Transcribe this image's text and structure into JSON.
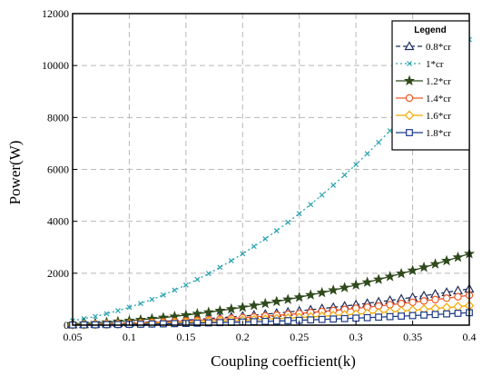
{
  "chart_data": {
    "type": "line",
    "title": "",
    "xlabel": "Coupling coefficient(k)",
    "ylabel": "Power(W)",
    "xlim": [
      0.05,
      0.4
    ],
    "ylim": [
      0,
      12000
    ],
    "xticks": [
      0.05,
      0.1,
      0.15,
      0.2,
      0.25,
      0.3,
      0.35,
      0.4
    ],
    "xtick_labels": [
      "0.05",
      "0.1",
      "0.15",
      "0.2",
      "0.25",
      "0.3",
      "0.35",
      "0.4"
    ],
    "yticks": [
      0,
      2000,
      4000,
      6000,
      8000,
      10000,
      12000
    ],
    "ytick_labels": [
      "0",
      "2000",
      "4000",
      "6000",
      "8000",
      "10000",
      "12000"
    ],
    "grid": true,
    "legend": {
      "title": "Legend",
      "position": "top-right"
    },
    "k_start": 0.05,
    "k_end": 0.4,
    "k_step": 0.01,
    "series": [
      {
        "name": "0.8*cr",
        "color": "#1f2d5a",
        "marker": "triangle",
        "line": "dashed",
        "y_at_start": 20,
        "y_at_end": 1400
      },
      {
        "name": "1*cr",
        "color": "#2aa3b0",
        "marker": "x",
        "line": "dotted",
        "y_at_start": 120,
        "y_at_end": 11000
      },
      {
        "name": "1.2*cr",
        "color": "#2f4a1c",
        "marker": "star",
        "line": "solid",
        "y_at_start": 30,
        "y_at_end": 2750
      },
      {
        "name": "1.4*cr",
        "color": "#f05a28",
        "marker": "circle",
        "line": "solid",
        "y_at_start": 15,
        "y_at_end": 1150
      },
      {
        "name": "1.6*cr",
        "color": "#f5a800",
        "marker": "diamond",
        "line": "solid",
        "y_at_start": 10,
        "y_at_end": 750
      },
      {
        "name": "1.8*cr",
        "color": "#1c3b8a",
        "marker": "square",
        "line": "solid",
        "y_at_start": 8,
        "y_at_end": 480
      }
    ]
  }
}
